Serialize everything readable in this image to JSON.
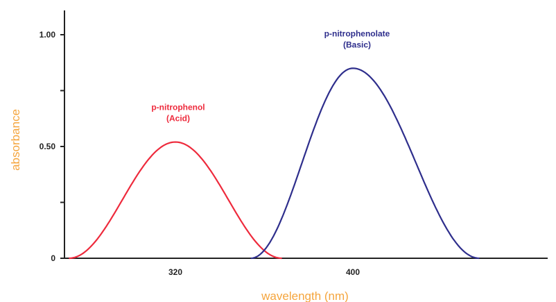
{
  "chart_data": {
    "type": "line",
    "title": "",
    "xlabel": "wavelength (nm)",
    "ylabel": "absorbance",
    "xlim": [
      270,
      470
    ],
    "ylim": [
      0,
      1.0
    ],
    "x_ticks": [
      {
        "value": 320,
        "label": "320"
      },
      {
        "value": 400,
        "label": "400"
      }
    ],
    "y_ticks": [
      {
        "value": 0,
        "label": "0"
      },
      {
        "value": 0.25,
        "label": ""
      },
      {
        "value": 0.5,
        "label": "0.50"
      },
      {
        "value": 0.75,
        "label": ""
      },
      {
        "value": 1.0,
        "label": "1.00"
      }
    ],
    "grid": false,
    "legend": "none",
    "series": [
      {
        "color": "#ee2a3c",
        "peak_x": 320,
        "peak_y": 0.52,
        "x_start": 272,
        "x_end": 368
      },
      {
        "color": "#2e2e8c",
        "peak_x": 400,
        "peak_y": 0.85,
        "x_start": 354,
        "x_end": 457
      }
    ],
    "annotations": [
      {
        "series": 0,
        "lines": [
          "p-nitrophenol",
          "(Acid)"
        ],
        "color": "#ee2a3c"
      },
      {
        "series": 1,
        "lines": [
          "p-nitrophenolate",
          "(Basic)"
        ],
        "color": "#2e2e8c"
      }
    ],
    "colors": {
      "axis": "#222222",
      "axis_title": "#f5a53d"
    }
  }
}
